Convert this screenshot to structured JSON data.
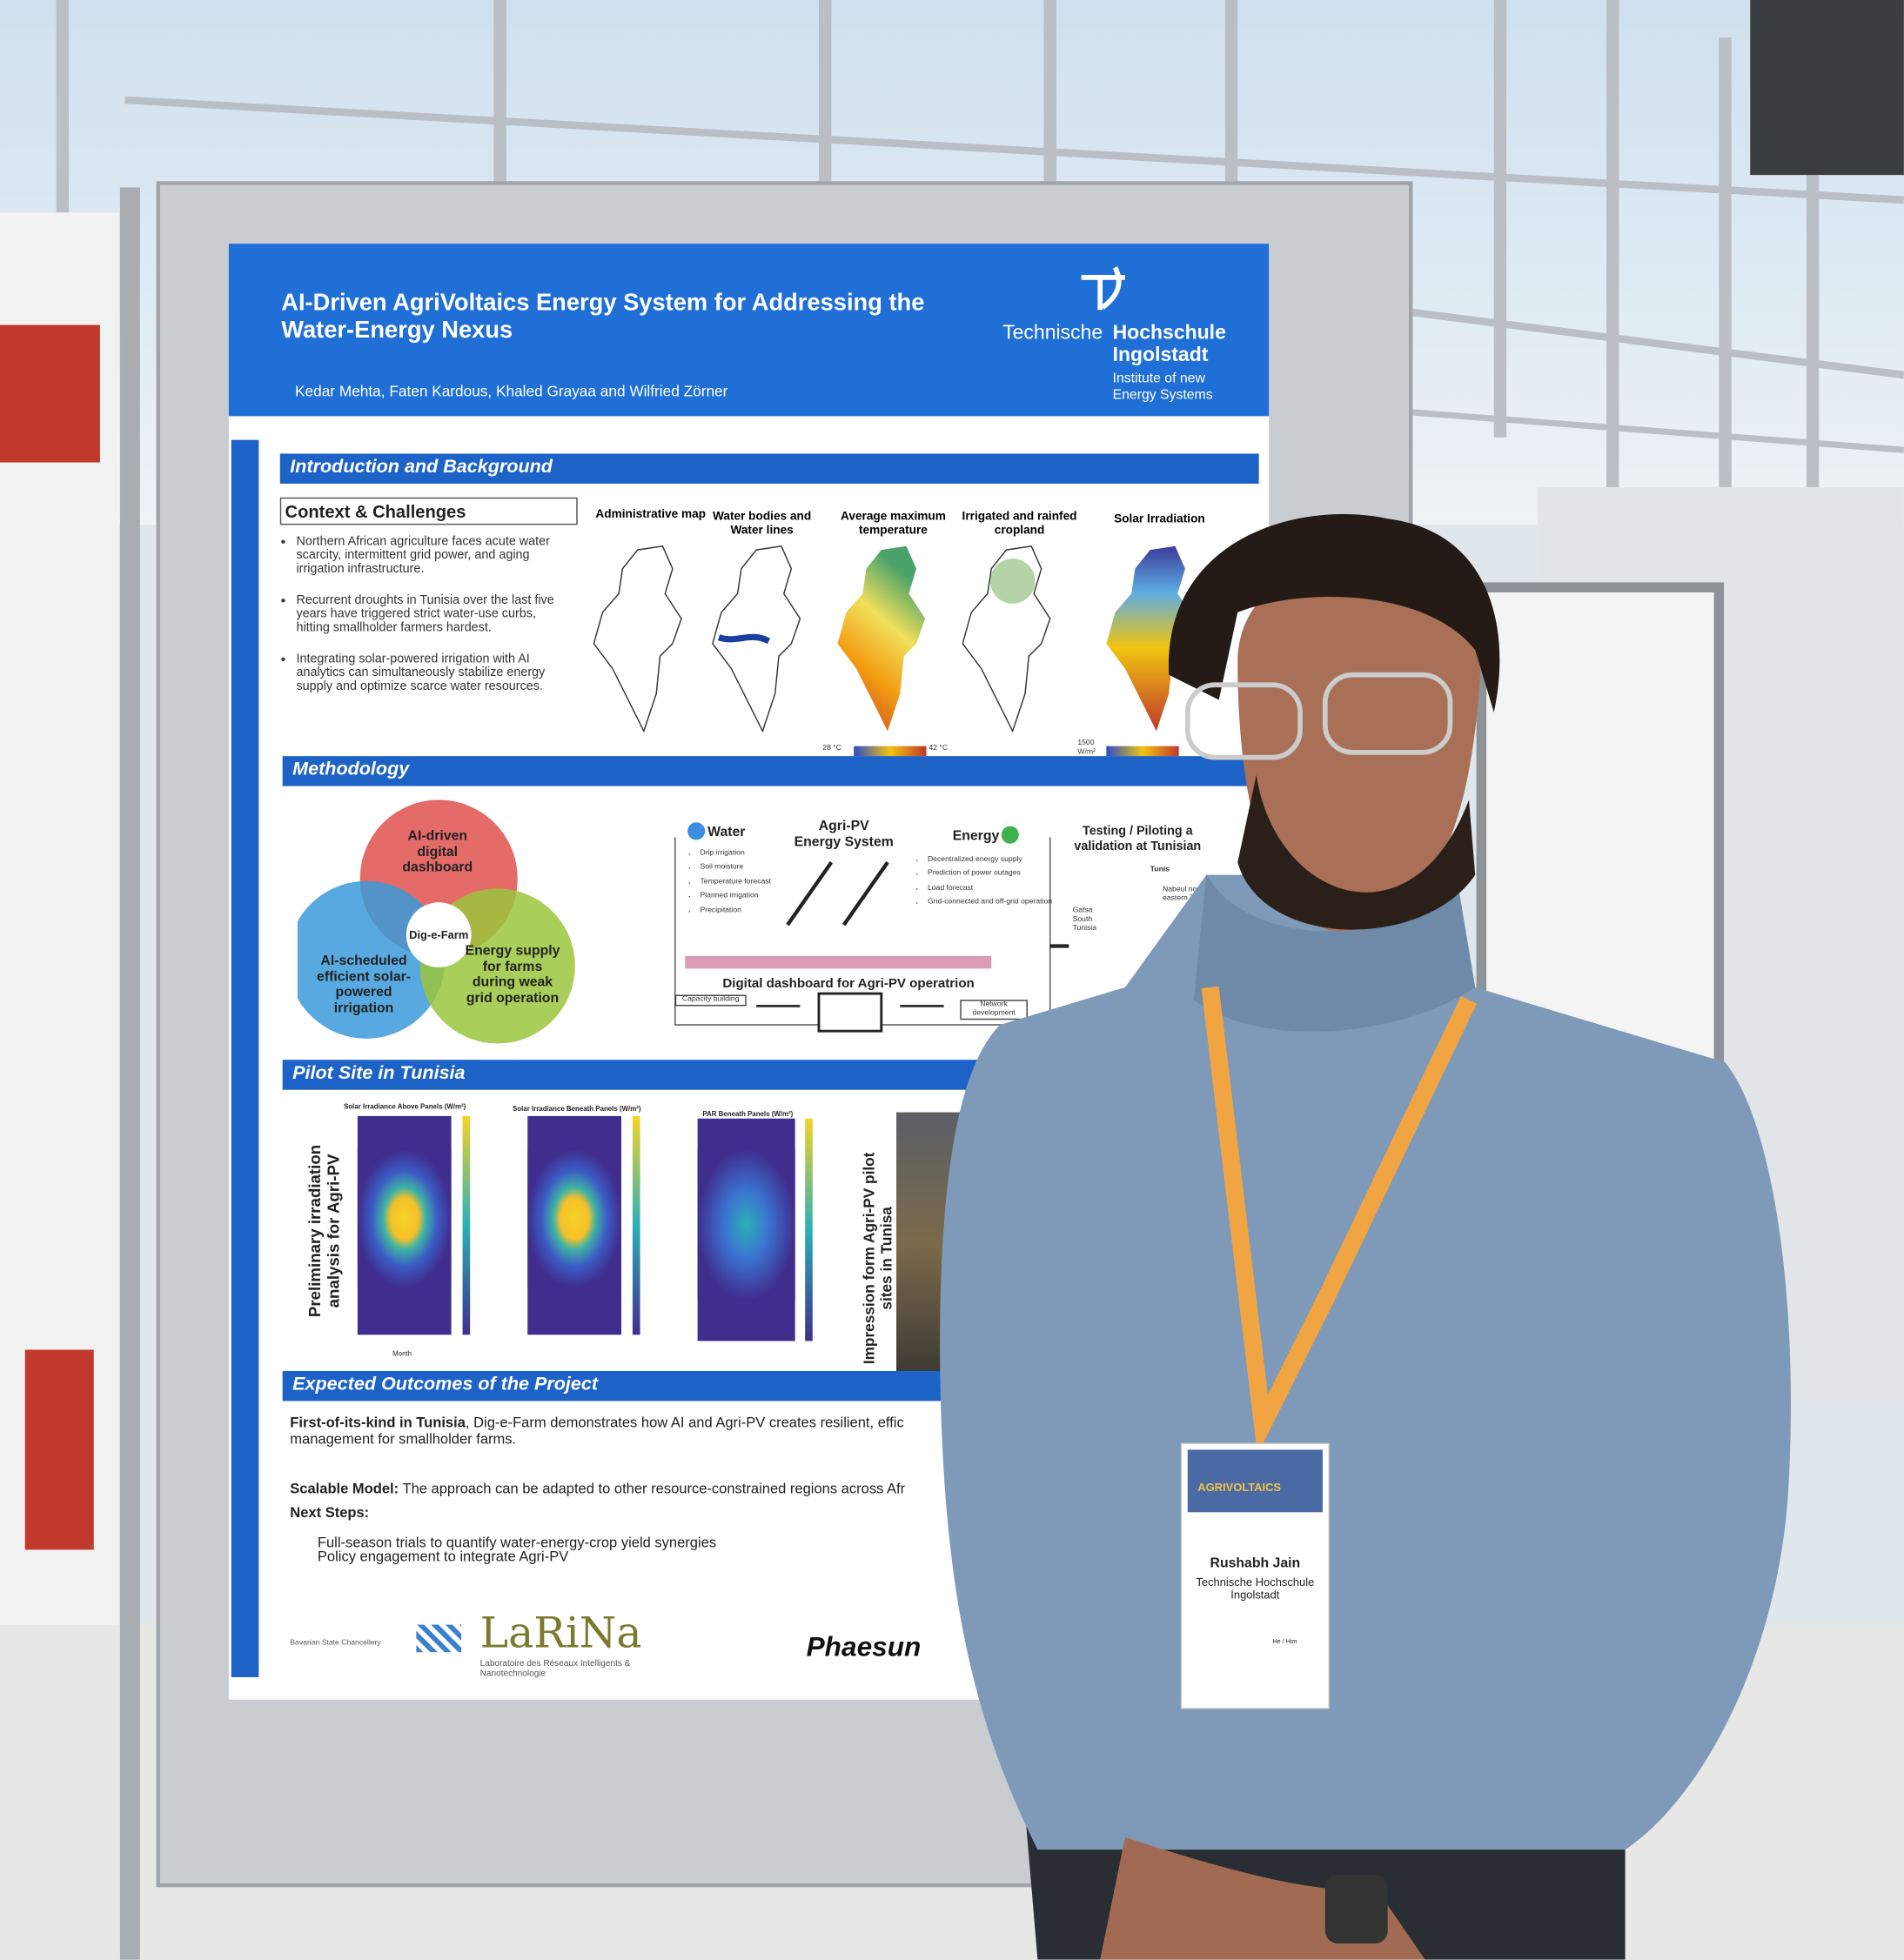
{
  "poster": {
    "title": "AI-Driven AgriVoltaics Energy System for Addressing the Water-Energy Nexus",
    "authors": "Kedar Mehta, Faten Kardous, Khaled Grayaa and Wilfried Zörner",
    "logo": {
      "name_light": "Technische",
      "name_bold": "Hochschule Ingolstadt",
      "unit": "Institute of new Energy Systems"
    },
    "introduction": {
      "heading": "Introduction and Background",
      "subheading": "Context & Challenges",
      "bullets": [
        "Northern African agriculture faces acute water scarcity, intermittent grid power, and aging irrigation infrastructure.",
        "Recurrent droughts in Tunisia over the last five years have triggered strict water-use curbs, hitting smallholder farmers hardest.",
        "Integrating solar-powered irrigation with AI analytics can simultaneously stabilize energy supply and optimize scarce water resources."
      ],
      "maps": [
        "Administrative map",
        "Water bodies and Water lines",
        "Average maximum temperature",
        "Irrigated and rainfed cropland",
        "Solar Irradiation"
      ],
      "temp_min": "28 °C",
      "temp_max": "42 °C",
      "irradiation_min": "1500 W/m²"
    },
    "methodology": {
      "heading": "Methodology",
      "venn": [
        "AI-driven digital dashboard",
        "AI-scheduled efficient solar-powered irrigation",
        "Energy supply for farms during weak grid operation"
      ],
      "center": "Dig-e-Farm",
      "water": "Water",
      "water_items": [
        "Drip irrigation",
        "Soil moisture",
        "Temperature forecast",
        "Planned irrigation",
        "Precipitation"
      ],
      "system": "Agri-PV Energy System",
      "energy": "Energy",
      "energy_items": [
        "Decentralized energy supply",
        "Prediction of power outages",
        "Load forecast",
        "Grid-connected and off-grid operation"
      ],
      "dashboard": "Digital dashboard for Agri-PV operatrion",
      "capacity": "Capacity building",
      "network": "Network development",
      "testing": "Testing / Piloting a validation at Tunisian",
      "sites": [
        "Tunis",
        "Nabeul north-eastern Tunisia",
        "Gafsa South Tunisia"
      ]
    },
    "pilot": {
      "heading": "Pilot Site in Tunisia",
      "left_label": "Preliminary irradiation analysis for Agri-PV",
      "plots": [
        "Solar Irradiance Above Panels (W/m²)",
        "Solar Irradiance Beneath Panels (W/m²)",
        "PAR Beneath Panels (W/m²)"
      ],
      "axis_x": "Month",
      "right_label": "Impression form Agri-PV pilot sites in Tunisa"
    },
    "outcomes": {
      "heading": "Expected Outcomes of the Project",
      "first_bold": "First-of-its-kind in Tunisia",
      "first_text": ", Dig-e-Farm demonstrates how AI and Agri-PV creates resilient, effic management for smallholder farms.",
      "scalable_bold": "Scalable Model:",
      "scalable_text": "The approach can be adapted to other resource-constrained regions across Afr",
      "next": "Next Steps:",
      "steps": [
        "Full-season trials to quantify water-energy-crop yield synergies",
        "Policy engagement to integrate Agri-PV"
      ]
    },
    "partners": {
      "bavaria": "Bavarian State Chancellery",
      "larina": "LaRiNa",
      "larina_sub": "Laboratoire des Réseaux Intelligents & Nanotechnologie",
      "phaesun": "Phaesun"
    }
  },
  "badge": {
    "event": "AGRIVOLTAICS",
    "name": "Rushabh Jain",
    "affiliation": "Technische Hochschule Ingolstadt",
    "pronouns": "He / Him"
  }
}
